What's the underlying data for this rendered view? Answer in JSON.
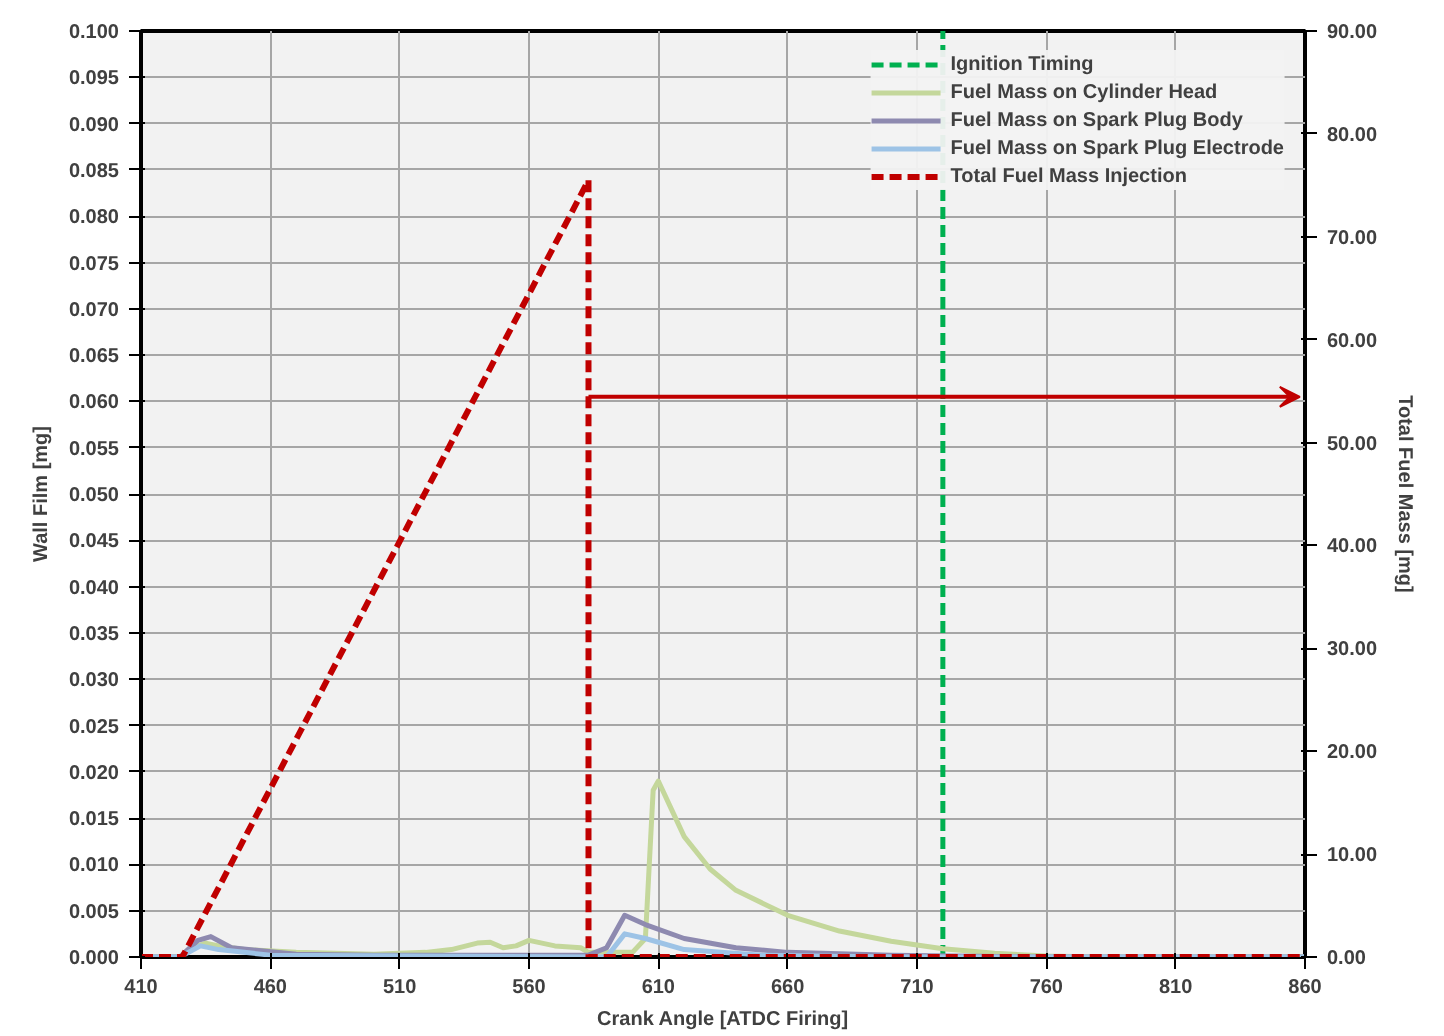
{
  "chart_data": {
    "type": "line",
    "xlabel": "Crank Angle [ATDC Firing]",
    "ylabel": "Wall Film [mg]",
    "y2label": "Total Fuel Mass [mg]",
    "xlim": [
      410,
      860
    ],
    "xticks": [
      410,
      460,
      510,
      560,
      610,
      660,
      710,
      760,
      810,
      860
    ],
    "ylim": [
      0,
      0.1
    ],
    "yticks": [
      {
        "value": 0,
        "label": "0.000"
      },
      0.005,
      {
        "value": 0.01,
        "label": "0.010"
      },
      0.015,
      {
        "value": 0.02,
        "label": "0.020"
      },
      0.025,
      {
        "value": 0.03,
        "label": "0.030"
      },
      0.035,
      {
        "value": 0.04,
        "label": "0.040"
      },
      0.045,
      {
        "value": 0.05,
        "label": "0.050"
      },
      0.055,
      {
        "value": 0.06,
        "label": "0.060"
      },
      0.065,
      {
        "value": 0.07,
        "label": "0.070"
      },
      0.075,
      {
        "value": 0.08,
        "label": "0.080"
      },
      0.085,
      {
        "value": 0.09,
        "label": "0.090"
      },
      0.095,
      {
        "value": 0.1,
        "label": "0.100"
      }
    ],
    "y2lim": [
      0,
      90
    ],
    "y2ticks": [
      {
        "value": 0,
        "label": "0.00"
      },
      {
        "value": 10,
        "label": "10.00"
      },
      {
        "value": 20,
        "label": "20.00"
      },
      {
        "value": 30,
        "label": "30.00"
      },
      {
        "value": 40,
        "label": "40.00"
      },
      {
        "value": 50,
        "label": "50.00"
      },
      {
        "value": 60,
        "label": "60.00"
      },
      {
        "value": 70,
        "label": "70.00"
      },
      {
        "value": 80,
        "label": "80.00"
      },
      {
        "value": 90,
        "label": "90.00"
      }
    ],
    "grid": true,
    "legend": "top right",
    "series": [
      {
        "name": "Ignition Timing",
        "color": "#00b050",
        "line_style": "dashed",
        "x": [
          720,
          720
        ],
        "values": [
          0,
          0.1
        ]
      },
      {
        "name": "Fuel Mass on Cylinder Head",
        "color": "#c4d79b",
        "line_style": "solid",
        "x": [
          410,
          425,
          430,
          435,
          440,
          450,
          470,
          500,
          520,
          530,
          540,
          545,
          550,
          555,
          560,
          565,
          570,
          580,
          583,
          600,
          605,
          608,
          610,
          615,
          620,
          630,
          640,
          660,
          680,
          700,
          720,
          740,
          760,
          780,
          860
        ],
        "values": [
          0,
          0,
          0.001,
          0.0015,
          0.0012,
          0.0008,
          0.0005,
          0.0003,
          0.0005,
          0.0008,
          0.0015,
          0.0016,
          0.001,
          0.0012,
          0.0018,
          0.0015,
          0.0012,
          0.001,
          0.0005,
          0.0005,
          0.002,
          0.018,
          0.019,
          0.016,
          0.013,
          0.0095,
          0.0072,
          0.0045,
          0.0028,
          0.0017,
          0.0009,
          0.0004,
          0.0001,
          0,
          0
        ]
      },
      {
        "name": "Fuel Mass on Spark Plug Body",
        "color": "#8e8ab0",
        "line_style": "solid",
        "x": [
          410,
          425,
          432,
          437,
          445,
          470,
          500,
          583,
          590,
          597,
          605,
          620,
          640,
          660,
          700,
          760,
          860
        ],
        "values": [
          0,
          0,
          0.0018,
          0.0022,
          0.001,
          0.0003,
          0.0002,
          0.0002,
          0.001,
          0.0045,
          0.0035,
          0.002,
          0.001,
          0.0005,
          0.0002,
          0,
          0
        ]
      },
      {
        "name": "Fuel Mass on Spark Plug Electrode",
        "color": "#9dc3e6",
        "line_style": "solid",
        "x": [
          410,
          425,
          433,
          440,
          460,
          590,
          597,
          605,
          620,
          650,
          700,
          860
        ],
        "values": [
          0,
          0,
          0.0012,
          0.0008,
          0.0002,
          0,
          0.0025,
          0.002,
          0.0008,
          0.0002,
          0,
          0
        ]
      },
      {
        "name": "Total Fuel Mass Injection",
        "color": "#c00000",
        "line_style": "dashed",
        "axis": "y2",
        "x": [
          410,
          426,
          583,
          583,
          860
        ],
        "values": [
          0,
          0,
          75.5,
          0,
          0
        ]
      }
    ]
  }
}
